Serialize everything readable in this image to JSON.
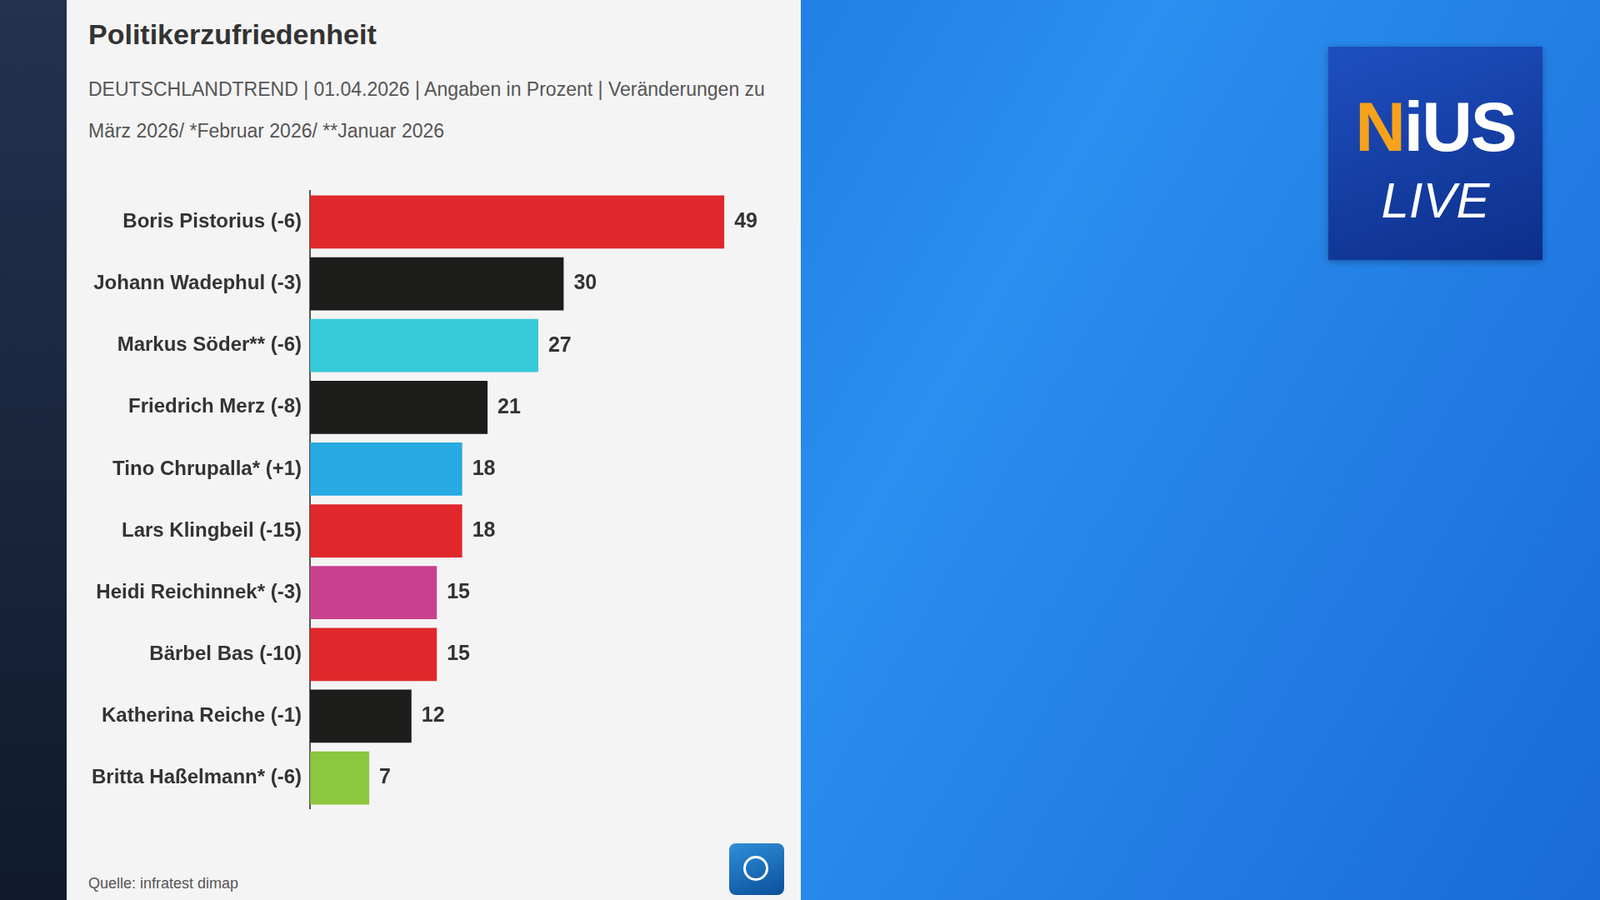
{
  "chart_data": {
    "type": "bar",
    "orientation": "horizontal",
    "title": "Politikerzufriedenheit",
    "subtitle": "DEUTSCHLANDTREND | 01.04.2026 | Angaben in Prozent | Veränderungen zu März 2026/ *Februar 2026/ **Januar 2026",
    "source": "Quelle: infratest dimap",
    "categories": [
      "Boris Pistorius (-6)",
      "Johann Wadephul (-3)",
      "Markus Söder** (-6)",
      "Friedrich Merz (-8)",
      "Tino Chrupalla* (+1)",
      "Lars Klingbeil (-15)",
      "Heidi Reichinnek* (-3)",
      "Bärbel Bas (-10)",
      "Katherina Reiche (-1)",
      "Britta Haßelmann* (-6)"
    ],
    "values": [
      49,
      30,
      27,
      21,
      18,
      18,
      15,
      15,
      12,
      7
    ],
    "colors": [
      "#e0282c",
      "#1d1d1b",
      "#36c9d8",
      "#1d1d1b",
      "#27a9e1",
      "#e0282c",
      "#c8418f",
      "#e0282c",
      "#1d1d1b",
      "#8dc63f"
    ],
    "xlim": [
      0,
      55
    ],
    "data_labels": true,
    "tick_labels": "y",
    "grid": false
  },
  "logo": {
    "line1": "NiUS",
    "line2": "LIVE"
  }
}
